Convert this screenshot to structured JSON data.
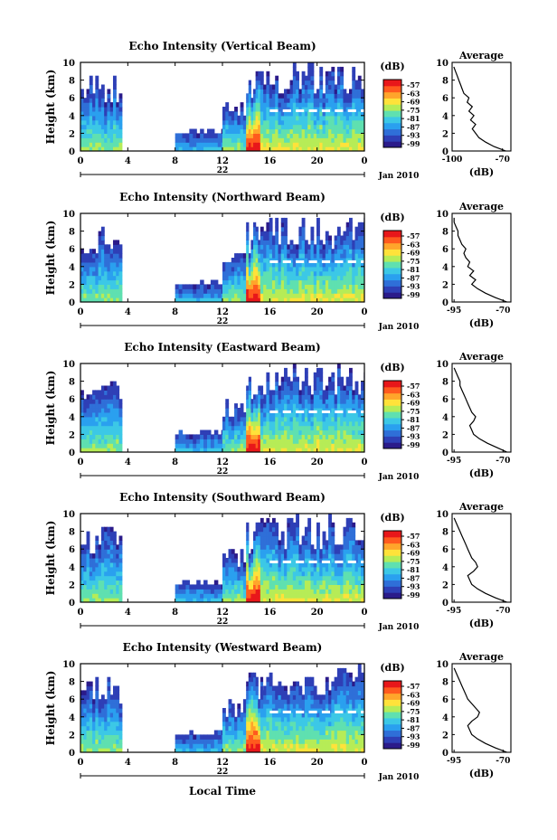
{
  "figure": {
    "date_label": "Jan 2010",
    "xlabel": "Local Time",
    "y_label": "Height (km)",
    "cbar_label": "(dB)",
    "avg_title": "Average",
    "avg_xlabel": "(dB)",
    "colors": [
      "#2b1b8a",
      "#2e3fb6",
      "#2f6fd8",
      "#2aa0ef",
      "#3cc8e6",
      "#5fe0b0",
      "#b6ec57",
      "#ffe23a",
      "#ffa52b",
      "#ff5a1e",
      "#e8171a"
    ]
  },
  "chart_data": [
    {
      "type": "heatmap",
      "title": "Echo Intensity (Vertical Beam)",
      "ylabel": "Height (km)",
      "ylim": [
        0,
        10
      ],
      "yticks": [
        "0",
        "2",
        "4",
        "6",
        "8",
        "10"
      ],
      "xticks": [
        "0",
        "4",
        "8",
        "12",
        "16",
        "20",
        "0"
      ],
      "day_label": "22",
      "colorbar_ticks": [
        "-57",
        "-63",
        "-69",
        "-75",
        "-81",
        "-87",
        "-93",
        "-99"
      ],
      "average": {
        "title": "Average",
        "xlabel": "(dB)",
        "xlim": [
          -100,
          -65
        ],
        "xticks": [
          "-100",
          "-70"
        ],
        "yticks": [
          "0",
          "2",
          "4",
          "6",
          "8",
          "10"
        ],
        "profile": [
          [
            -68,
            0
          ],
          [
            -75,
            0.5
          ],
          [
            -80,
            1
          ],
          [
            -84,
            1.5
          ],
          [
            -86,
            2
          ],
          [
            -88,
            2.5
          ],
          [
            -86,
            3
          ],
          [
            -89,
            3.5
          ],
          [
            -87,
            4
          ],
          [
            -90,
            4.5
          ],
          [
            -88,
            5
          ],
          [
            -91,
            5.5
          ],
          [
            -90,
            6
          ],
          [
            -93,
            6.5
          ],
          [
            -94,
            7
          ],
          [
            -95,
            7.5
          ],
          [
            -96,
            8
          ],
          [
            -97,
            8.5
          ],
          [
            -98,
            9
          ],
          [
            -99,
            9.5
          ]
        ]
      }
    },
    {
      "type": "heatmap",
      "title": "Echo Intensity (Northward Beam)",
      "ylabel": "Height (km)",
      "ylim": [
        0,
        10
      ],
      "yticks": [
        "0",
        "2",
        "4",
        "6",
        "8",
        "10"
      ],
      "xticks": [
        "0",
        "4",
        "8",
        "12",
        "16",
        "20",
        "0"
      ],
      "day_label": "22",
      "colorbar_ticks": [
        "-57",
        "-63",
        "-69",
        "-75",
        "-81",
        "-87",
        "-93",
        "-99"
      ],
      "average": {
        "title": "Average",
        "xlabel": "(dB)",
        "xlim": [
          -96,
          -66
        ],
        "xticks": [
          "-95",
          "-70"
        ],
        "yticks": [
          "0",
          "2",
          "4",
          "6",
          "8",
          "10"
        ],
        "profile": [
          [
            -68,
            0
          ],
          [
            -74,
            0.5
          ],
          [
            -79,
            1
          ],
          [
            -83,
            1.5
          ],
          [
            -86,
            2
          ],
          [
            -84,
            2.5
          ],
          [
            -87,
            3
          ],
          [
            -85,
            3.5
          ],
          [
            -88,
            4
          ],
          [
            -87,
            4.5
          ],
          [
            -89,
            5
          ],
          [
            -90,
            5.5
          ],
          [
            -89,
            6
          ],
          [
            -91,
            6.5
          ],
          [
            -92,
            7
          ],
          [
            -93,
            7.5
          ],
          [
            -93,
            8
          ],
          [
            -94,
            8.5
          ],
          [
            -95,
            9
          ],
          [
            -95,
            9.5
          ]
        ]
      }
    },
    {
      "type": "heatmap",
      "title": "Echo Intensity (Eastward Beam)",
      "ylabel": "Height (km)",
      "ylim": [
        0,
        10
      ],
      "yticks": [
        "0",
        "2",
        "4",
        "6",
        "8",
        "10"
      ],
      "xticks": [
        "0",
        "4",
        "8",
        "12",
        "16",
        "20",
        "0"
      ],
      "day_label": "22",
      "colorbar_ticks": [
        "-57",
        "-63",
        "-69",
        "-75",
        "-81",
        "-87",
        "-93",
        "-99"
      ],
      "average": {
        "title": "Average",
        "xlabel": "(dB)",
        "xlim": [
          -96,
          -66
        ],
        "xticks": [
          "-95",
          "-70"
        ],
        "yticks": [
          "0",
          "2",
          "4",
          "6",
          "8",
          "10"
        ],
        "profile": [
          [
            -68,
            0
          ],
          [
            -73,
            0.5
          ],
          [
            -78,
            1
          ],
          [
            -82,
            1.5
          ],
          [
            -85,
            2
          ],
          [
            -86,
            2.5
          ],
          [
            -87,
            3
          ],
          [
            -85,
            3.5
          ],
          [
            -84,
            4
          ],
          [
            -86,
            4.5
          ],
          [
            -87,
            5
          ],
          [
            -88,
            5.5
          ],
          [
            -89,
            6
          ],
          [
            -90,
            6.5
          ],
          [
            -91,
            7
          ],
          [
            -92,
            7.5
          ],
          [
            -92,
            8
          ],
          [
            -93,
            8.5
          ],
          [
            -94,
            9
          ],
          [
            -95,
            9.5
          ]
        ]
      }
    },
    {
      "type": "heatmap",
      "title": "Echo Intensity (Southward Beam)",
      "ylabel": "Height (km)",
      "ylim": [
        0,
        10
      ],
      "yticks": [
        "0",
        "2",
        "4",
        "6",
        "8",
        "10"
      ],
      "xticks": [
        "0",
        "4",
        "8",
        "12",
        "16",
        "20",
        "0"
      ],
      "day_label": "22",
      "colorbar_ticks": [
        "-57",
        "-63",
        "-69",
        "-75",
        "-81",
        "-87",
        "-93",
        "-99"
      ],
      "average": {
        "title": "Average",
        "xlabel": "(dB)",
        "xlim": [
          -96,
          -66
        ],
        "xticks": [
          "-95",
          "-70"
        ],
        "yticks": [
          "0",
          "2",
          "4",
          "6",
          "8",
          "10"
        ],
        "profile": [
          [
            -68,
            0
          ],
          [
            -74,
            0.5
          ],
          [
            -79,
            1
          ],
          [
            -83,
            1.5
          ],
          [
            -86,
            2
          ],
          [
            -87,
            2.5
          ],
          [
            -88,
            3
          ],
          [
            -85,
            3.5
          ],
          [
            -83,
            4
          ],
          [
            -84,
            4.5
          ],
          [
            -86,
            5
          ],
          [
            -87,
            5.5
          ],
          [
            -88,
            6
          ],
          [
            -89,
            6.5
          ],
          [
            -90,
            7
          ],
          [
            -91,
            7.5
          ],
          [
            -92,
            8
          ],
          [
            -93,
            8.5
          ],
          [
            -94,
            9
          ],
          [
            -95,
            9.5
          ]
        ]
      }
    },
    {
      "type": "heatmap",
      "title": "Echo Intensity (Westward Beam)",
      "ylabel": "Height (km)",
      "ylim": [
        0,
        10
      ],
      "yticks": [
        "0",
        "2",
        "4",
        "6",
        "8",
        "10"
      ],
      "xticks": [
        "0",
        "4",
        "8",
        "12",
        "16",
        "20",
        "0"
      ],
      "day_label": "22",
      "colorbar_ticks": [
        "-57",
        "-63",
        "-69",
        "-75",
        "-81",
        "-87",
        "-93",
        "-99"
      ],
      "average": {
        "title": "Average",
        "xlabel": "(dB)",
        "xlim": [
          -96,
          -66
        ],
        "xticks": [
          "-95",
          "-70"
        ],
        "yticks": [
          "0",
          "2",
          "4",
          "6",
          "8",
          "10"
        ],
        "profile": [
          [
            -68,
            0
          ],
          [
            -74,
            0.5
          ],
          [
            -79,
            1
          ],
          [
            -83,
            1.5
          ],
          [
            -86,
            2
          ],
          [
            -87,
            2.5
          ],
          [
            -88,
            3
          ],
          [
            -86,
            3.5
          ],
          [
            -83,
            4
          ],
          [
            -82,
            4.5
          ],
          [
            -84,
            5
          ],
          [
            -86,
            5.5
          ],
          [
            -88,
            6
          ],
          [
            -89,
            6.5
          ],
          [
            -90,
            7
          ],
          [
            -91,
            7.5
          ],
          [
            -92,
            8
          ],
          [
            -93,
            8.5
          ],
          [
            -94,
            9
          ],
          [
            -95,
            9.5
          ]
        ]
      }
    }
  ]
}
